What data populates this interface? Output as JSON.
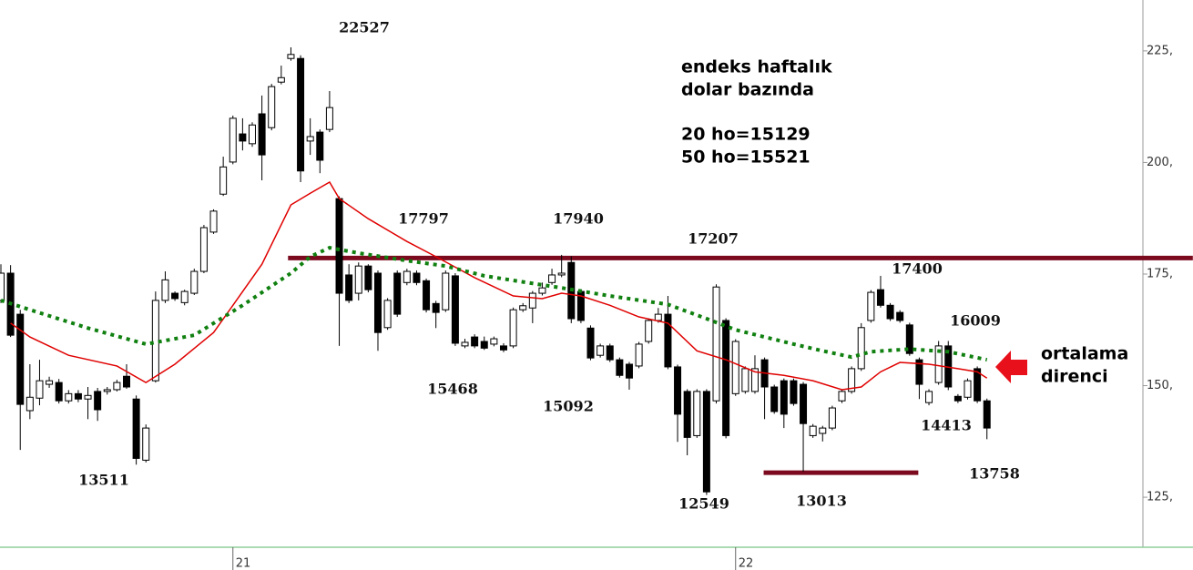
{
  "chart_data": {
    "type": "candlestick",
    "categories": [
      null,
      null,
      null,
      null,
      null,
      null,
      null,
      null,
      null,
      null,
      null,
      null,
      null,
      null,
      null,
      null,
      null,
      null,
      null,
      null,
      null,
      null,
      null,
      null,
      "21",
      null,
      null,
      null,
      null,
      null,
      null,
      null,
      null,
      null,
      null,
      null,
      null,
      null,
      null,
      null,
      null,
      null,
      null,
      null,
      null,
      null,
      null,
      null,
      null,
      null,
      null,
      null,
      null,
      null,
      null,
      null,
      null,
      null,
      null,
      null,
      null,
      null,
      null,
      null,
      null,
      null,
      null,
      null,
      null,
      null,
      null,
      null,
      null,
      null,
      null,
      null,
      "22",
      null,
      null,
      null,
      null,
      null,
      null,
      null,
      null,
      null,
      null,
      null,
      null,
      null,
      null,
      null,
      null,
      null,
      null,
      null,
      null,
      null,
      null,
      null,
      null,
      null,
      null
    ],
    "open": [
      169.1,
      175.2,
      166.0,
      144.4,
      147.2,
      150.3,
      150.7,
      146.6,
      148.2,
      147.0,
      148.7,
      148.7,
      149.1,
      152.1,
      147.0,
      133.3,
      151.1,
      169.1,
      170.7,
      168.6,
      170.7,
      175.6,
      184.4,
      192.9,
      200.1,
      206.4,
      204.2,
      210.9,
      207.8,
      218.0,
      223.3,
      223.3,
      204.8,
      206.8,
      207.4,
      191.9,
      174.8,
      170.7,
      176.8,
      175.2,
      163.0,
      175.2,
      173.1,
      175.2,
      173.5,
      168.4,
      167.0,
      174.6,
      158.9,
      160.9,
      159.9,
      159.3,
      158.9,
      158.9,
      167.0,
      167.4,
      170.7,
      173.1,
      174.8,
      177.6,
      171.1,
      162.9,
      156.8,
      158.9,
      155.8,
      154.8,
      154.4,
      159.9,
      164.6,
      166.0,
      154.2,
      148.7,
      138.8,
      148.7,
      146.6,
      164.6,
      148.2,
      148.7,
      148.7,
      155.8,
      149.7,
      151.1,
      151.1,
      150.3,
      138.8,
      139.3,
      140.5,
      146.6,
      148.7,
      153.8,
      164.6,
      171.5,
      168.0,
      166.4,
      163.6,
      155.8,
      146.2,
      150.7,
      158.9,
      147.6,
      147.4,
      153.8,
      146.6
    ],
    "high": [
      177.2,
      177.0,
      167.0,
      154.8,
      155.8,
      152.0,
      151.5,
      149.0,
      149.0,
      149.7,
      149.5,
      149.7,
      151.3,
      154.8,
      147.8,
      141.3,
      171.1,
      175.6,
      171.1,
      171.5,
      176.2,
      186.0,
      189.5,
      201.3,
      210.5,
      209.9,
      209.0,
      215.0,
      217.6,
      221.7,
      225.8,
      224.0,
      209.9,
      207.4,
      216.0,
      192.4,
      177.2,
      177.6,
      177.2,
      175.8,
      169.6,
      175.8,
      176.2,
      175.8,
      174.0,
      169.0,
      175.8,
      175.2,
      160.5,
      161.5,
      161.0,
      161.0,
      159.5,
      167.5,
      168.5,
      171.2,
      173.1,
      176.2,
      179.3,
      179.0,
      171.6,
      163.5,
      159.4,
      159.4,
      156.3,
      155.3,
      159.8,
      165.1,
      167.4,
      170.1,
      154.7,
      149.2,
      149.2,
      149.2,
      172.7,
      165.1,
      160.4,
      154.3,
      156.8,
      156.3,
      150.2,
      151.6,
      151.6,
      150.8,
      141.4,
      141.0,
      145.5,
      149.2,
      154.3,
      164.0,
      171.4,
      174.6,
      168.5,
      166.9,
      164.1,
      156.3,
      149.2,
      160.0,
      160.0,
      148.1,
      151.6,
      154.3,
      147.1
    ],
    "low": [
      168.5,
      160.9,
      135.6,
      142.5,
      145.6,
      149.5,
      146.0,
      146.0,
      146.3,
      142.5,
      142.1,
      148.0,
      148.7,
      149.3,
      132.3,
      132.8,
      150.7,
      168.5,
      169.0,
      168.0,
      170.3,
      175.2,
      184.0,
      192.5,
      199.6,
      202.7,
      203.5,
      196.0,
      207.2,
      217.5,
      222.8,
      195.6,
      201.7,
      197.6,
      206.8,
      158.9,
      168.5,
      169.1,
      170.9,
      157.8,
      162.5,
      165.4,
      172.5,
      172.5,
      166.4,
      162.9,
      166.5,
      158.9,
      158.4,
      158.4,
      158.0,
      158.8,
      157.5,
      158.4,
      166.5,
      164.0,
      170.2,
      172.6,
      174.3,
      164.0,
      164.0,
      155.7,
      156.3,
      155.3,
      151.8,
      149.1,
      153.9,
      159.4,
      164.1,
      153.7,
      137.4,
      134.4,
      138.3,
      125.5,
      146.0,
      138.2,
      147.7,
      148.2,
      148.2,
      142.5,
      143.7,
      140.5,
      145.5,
      130.7,
      138.3,
      137.5,
      140.0,
      146.1,
      148.2,
      153.3,
      164.1,
      167.5,
      164.5,
      164.1,
      156.7,
      147.0,
      145.6,
      150.2,
      149.0,
      146.1,
      146.9,
      146.1,
      138.0
    ],
    "close": [
      175.2,
      161.3,
      145.8,
      147.4,
      151.1,
      151.1,
      146.6,
      148.2,
      147.0,
      147.8,
      144.6,
      149.1,
      150.7,
      149.7,
      133.7,
      140.5,
      169.1,
      173.7,
      169.5,
      171.1,
      175.6,
      185.4,
      189.1,
      199.0,
      209.9,
      204.8,
      208.4,
      201.7,
      217.0,
      219.0,
      224.2,
      198.1,
      205.8,
      200.5,
      212.3,
      170.7,
      169.1,
      176.8,
      171.5,
      161.9,
      169.1,
      166.0,
      175.6,
      173.1,
      167.0,
      166.4,
      175.2,
      159.5,
      159.7,
      158.9,
      158.4,
      160.5,
      158.0,
      167.0,
      167.9,
      170.7,
      171.9,
      174.8,
      175.2,
      165.0,
      164.6,
      156.2,
      158.9,
      155.8,
      152.3,
      151.7,
      159.3,
      164.6,
      166.0,
      154.2,
      143.6,
      138.4,
      148.7,
      126.2,
      172.1,
      138.8,
      159.9,
      153.8,
      153.8,
      149.7,
      144.2,
      143.6,
      146.0,
      141.5,
      140.9,
      140.5,
      145.0,
      148.7,
      153.8,
      163.0,
      170.9,
      168.0,
      165.0,
      164.6,
      157.2,
      150.3,
      148.7,
      158.9,
      149.7,
      146.6,
      151.1,
      146.6,
      140.5
    ],
    "up_color": "#ffffff",
    "down_color": "#000000",
    "overlays": [
      {
        "color": "#e00000",
        "style": "solid",
        "x": [
          1,
          3,
          7,
          12,
          15,
          18,
          22,
          24,
          27,
          30,
          32,
          34,
          35,
          38,
          42,
          45,
          49,
          53,
          56,
          58,
          60,
          63,
          66,
          69,
          72,
          75,
          78,
          81,
          84,
          87,
          89,
          91,
          93,
          96,
          99,
          101,
          102
        ],
        "values": [
          164.0,
          160.9,
          156.8,
          154.4,
          150.7,
          154.8,
          161.9,
          168.0,
          177.2,
          190.5,
          193.1,
          195.6,
          191.9,
          187.4,
          182.3,
          178.9,
          174.2,
          170.1,
          169.5,
          170.7,
          170.1,
          168.0,
          165.4,
          164.0,
          157.8,
          155.8,
          153.1,
          152.3,
          151.1,
          149.1,
          149.7,
          153.1,
          155.2,
          154.8,
          153.8,
          153.1,
          151.7
        ]
      },
      {
        "color": "#108010",
        "style": "dotted",
        "x": [
          0,
          3,
          9,
          15,
          20,
          25,
          30,
          32,
          34,
          37,
          42,
          46,
          50,
          55,
          58,
          63,
          69,
          73,
          76,
          82,
          85,
          88,
          90,
          94,
          98,
          102
        ],
        "values": [
          169.1,
          167.0,
          162.9,
          159.3,
          161.3,
          168.0,
          175.2,
          178.9,
          180.9,
          179.7,
          178.0,
          176.8,
          174.6,
          172.9,
          171.9,
          170.1,
          168.2,
          165.0,
          162.5,
          159.3,
          157.8,
          156.4,
          157.6,
          158.2,
          157.6,
          155.8
        ]
      }
    ],
    "hlines": [
      {
        "value": 178.6,
        "x": [
          29.7,
          123.3
        ],
        "color": "#7b0a1e"
      },
      {
        "value": 130.5,
        "x": [
          78.9,
          94.9
        ],
        "color": "#7b0a1e"
      }
    ],
    "ylim": [
      114,
      236.4
    ],
    "yticks": [
      {
        "value": 225,
        "label": "225,"
      },
      {
        "value": 200,
        "label": "200,"
      },
      {
        "value": 175,
        "label": "175,"
      },
      {
        "value": 150,
        "label": "150,"
      },
      {
        "value": 125,
        "label": "125,"
      }
    ],
    "annotations": [
      "22527",
      "17797",
      "17940",
      "17207",
      "17400",
      "16009",
      "15468",
      "15092",
      "14413",
      "13758",
      "13511",
      "12549",
      "13013"
    ],
    "text_block": [
      "endeks haftalık",
      "dolar bazında",
      "20 ho=15129",
      "50 ho=15521"
    ],
    "arrow_label": [
      "ortalama",
      "direnci"
    ],
    "arrow_color": "#e8101a"
  }
}
